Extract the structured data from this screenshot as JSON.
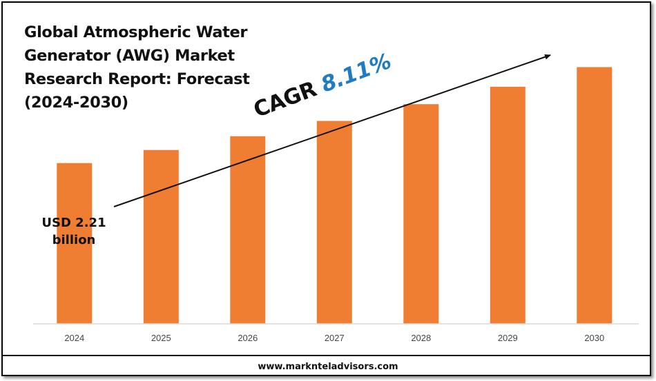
{
  "title": "Global Atmospheric Water Generator (AWG) Market Research Report: Forecast (2024-2030)",
  "cagr": {
    "prefix": "CAGR",
    "value": "8.11%"
  },
  "start_label": "USD 2.21\nbillion",
  "footer": {
    "website": "www.marknteladvisors.com"
  },
  "colors": {
    "bar": "#ef7d32",
    "accent": "#1f7bc4",
    "axis": "#d9d9d9"
  },
  "chart_data": {
    "type": "bar",
    "title": "Global Atmospheric Water Generator (AWG) Market Research Report: Forecast (2024-2030)",
    "categories": [
      "2024",
      "2025",
      "2026",
      "2027",
      "2028",
      "2029",
      "2030"
    ],
    "values": [
      2.21,
      2.39,
      2.58,
      2.79,
      3.02,
      3.26,
      3.53
    ],
    "unit": "USD billion",
    "xlabel": "",
    "ylabel": "",
    "ylim": [
      0,
      3.6
    ],
    "grid": false,
    "legend": "none",
    "annotations": [
      "USD 2.21 billion",
      "CAGR 8.11%"
    ]
  }
}
